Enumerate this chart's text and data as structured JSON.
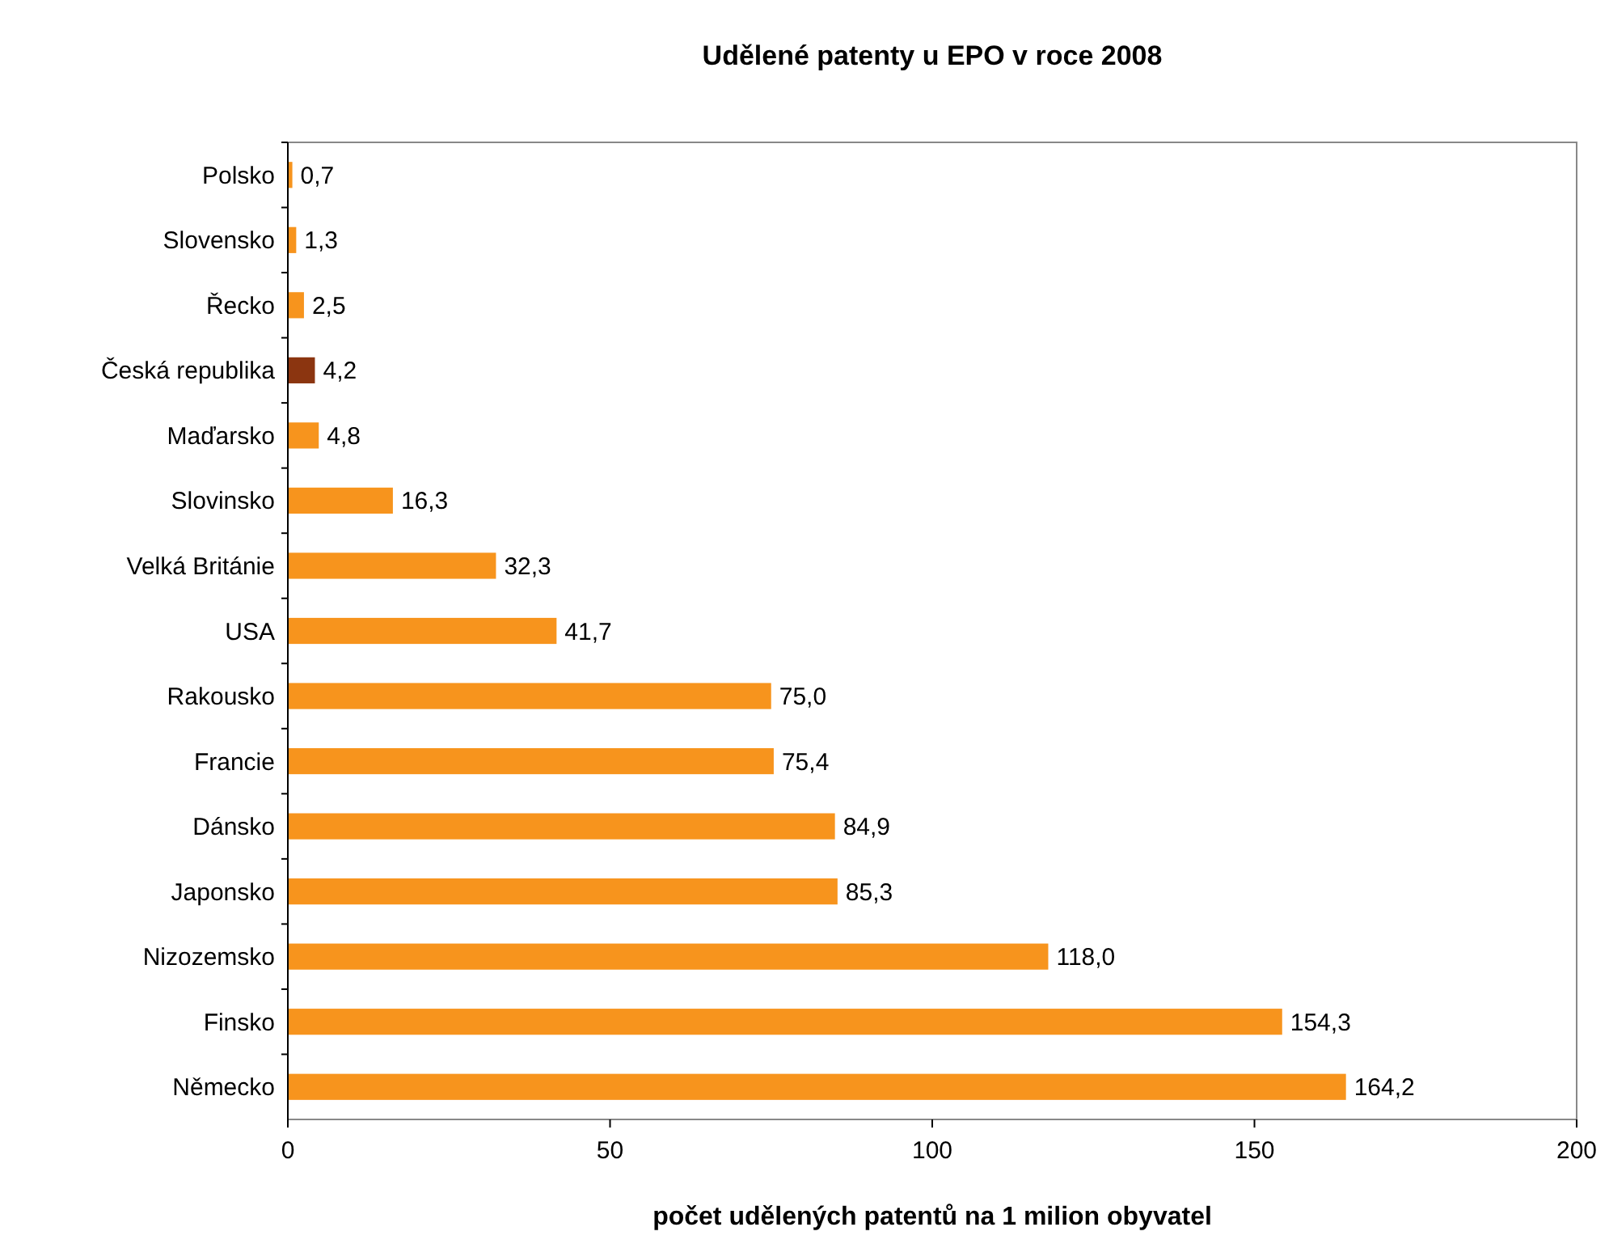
{
  "chart_data": {
    "type": "bar",
    "orientation": "horizontal",
    "title": "Udělené patenty u EPO v roce 2008",
    "xlabel": "počet udělených patentů na 1 milion obyvatel",
    "categories": [
      "Polsko",
      "Slovensko",
      "Řecko",
      "Česká republika",
      "Maďarsko",
      "Slovinsko",
      "Velká Británie",
      "USA",
      "Rakousko",
      "Francie",
      "Dánsko",
      "Japonsko",
      "Nizozemsko",
      "Finsko",
      "Německo"
    ],
    "values": [
      0.7,
      1.3,
      2.5,
      4.2,
      4.8,
      16.3,
      32.3,
      41.7,
      75.0,
      75.4,
      84.9,
      85.3,
      118.0,
      154.3,
      164.2
    ],
    "value_labels": [
      "0,7",
      "1,3",
      "2,5",
      "4,2",
      "4,8",
      "16,3",
      "32,3",
      "41,7",
      "75,0",
      "75,4",
      "84,9",
      "85,3",
      "118,0",
      "154,3",
      "164,2"
    ],
    "colors": [
      "#f7941d",
      "#f7941d",
      "#f7941d",
      "#8b3510",
      "#f7941d",
      "#f7941d",
      "#f7941d",
      "#f7941d",
      "#f7941d",
      "#f7941d",
      "#f7941d",
      "#f7941d",
      "#f7941d",
      "#f7941d",
      "#f7941d"
    ],
    "xlim": [
      0,
      200
    ],
    "xticks": [
      0,
      50,
      100,
      150,
      200
    ],
    "grid": false
  }
}
